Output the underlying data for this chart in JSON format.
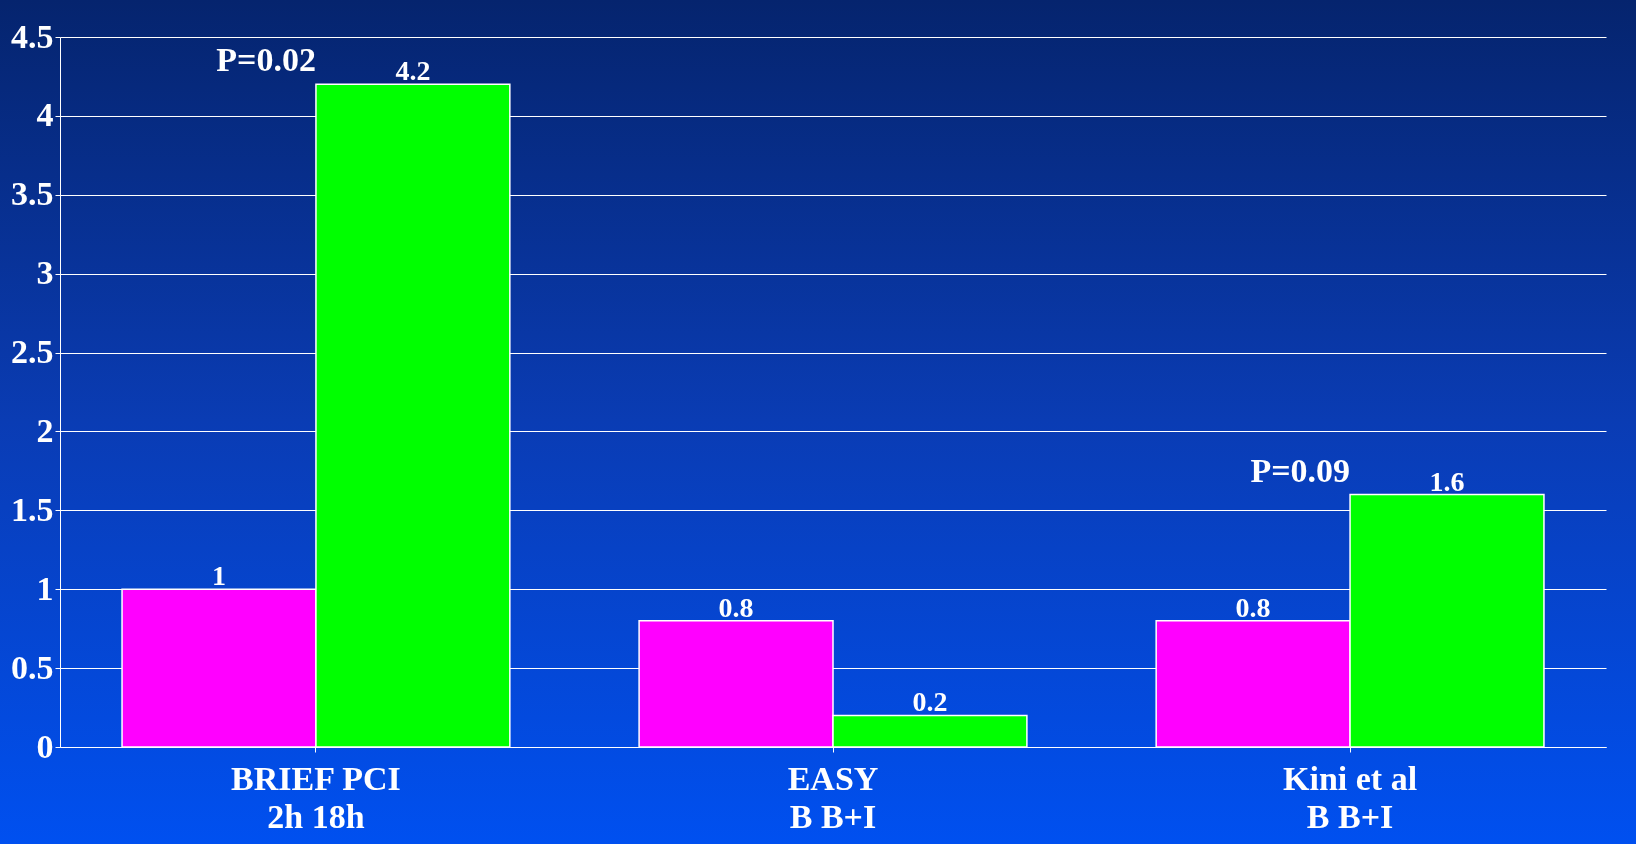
{
  "chart_data": {
    "type": "bar",
    "categories": [
      "BRIEF PCI\n2h 18h",
      "EASY\nB B+I",
      "Kini et al\nB B+I"
    ],
    "series": [
      {
        "color": "#ff00ff",
        "values": [
          1,
          0.8,
          0.8
        ]
      },
      {
        "color": "#00ff00",
        "values": [
          4.2,
          0.2,
          1.6
        ]
      }
    ],
    "ylim": [
      0,
      4.5
    ],
    "yticks": [
      0,
      0.5,
      1,
      1.5,
      2,
      2.5,
      3,
      3.5,
      4,
      4.5
    ],
    "grid": "y",
    "data_labels": true,
    "annotations": [
      {
        "text": "P=0.02",
        "x": "BRIEF PCI\n2h 18h",
        "y": 4.2
      },
      {
        "text": "P=0.09",
        "x": "Kini et al\nB B+I",
        "y": 1.6
      }
    ]
  }
}
